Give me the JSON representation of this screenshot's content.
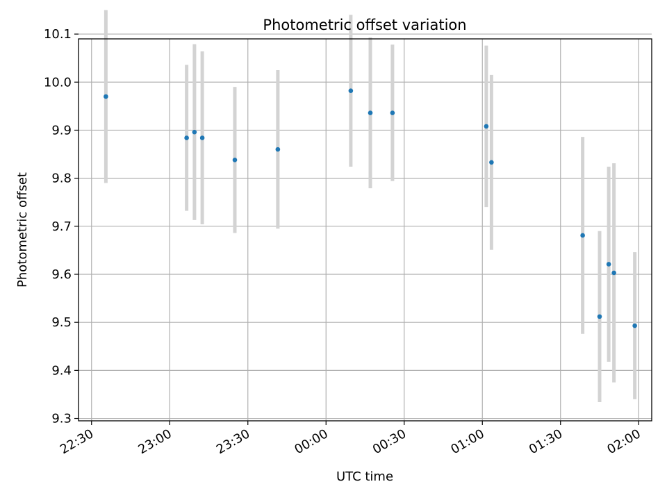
{
  "chart_data": {
    "type": "scatter",
    "title": "Photometric offset variation",
    "xlabel": "UTC time",
    "ylabel": "Photometric offset",
    "x_axis": {
      "type": "time",
      "start": "22:30",
      "end": "02:00",
      "range": [
        "22:25",
        "02:05"
      ],
      "ticks": [
        "22:30",
        "23:00",
        "23:30",
        "00:00",
        "00:30",
        "01:00",
        "01:30",
        "02:00"
      ]
    },
    "ylim": [
      9.295,
      10.09
    ],
    "yticks": [
      "9.3",
      "9.4",
      "9.5",
      "9.6",
      "9.7",
      "9.8",
      "9.9",
      "10.0",
      "10.1"
    ],
    "grid": true,
    "colors": {
      "point": "#1f77b4",
      "errorbar": "#d3d3d3",
      "grid": "#b0b0b0"
    },
    "points": [
      {
        "time": "22:35:30",
        "y": 9.97,
        "err": 0.18
      },
      {
        "time": "23:06:30",
        "y": 9.884,
        "err": 0.152
      },
      {
        "time": "23:09:30",
        "y": 9.896,
        "err": 0.183
      },
      {
        "time": "23:12:30",
        "y": 9.884,
        "err": 0.18
      },
      {
        "time": "23:25:00",
        "y": 9.838,
        "err": 0.152
      },
      {
        "time": "23:41:30",
        "y": 9.86,
        "err": 0.165
      },
      {
        "time": "00:09:30",
        "y": 9.982,
        "err": 0.158
      },
      {
        "time": "00:17:00",
        "y": 9.936,
        "err": 0.157
      },
      {
        "time": "00:25:30",
        "y": 9.936,
        "err": 0.142
      },
      {
        "time": "01:01:30",
        "y": 9.908,
        "err": 0.168
      },
      {
        "time": "01:03:30",
        "y": 9.833,
        "err": 0.182
      },
      {
        "time": "01:38:30",
        "y": 9.681,
        "err": 0.205
      },
      {
        "time": "01:45:00",
        "y": 9.512,
        "err": 0.178
      },
      {
        "time": "01:48:30",
        "y": 9.621,
        "err": 0.203
      },
      {
        "time": "01:50:30",
        "y": 9.603,
        "err": 0.228
      },
      {
        "time": "01:58:30",
        "y": 9.493,
        "err": 0.153
      }
    ]
  }
}
